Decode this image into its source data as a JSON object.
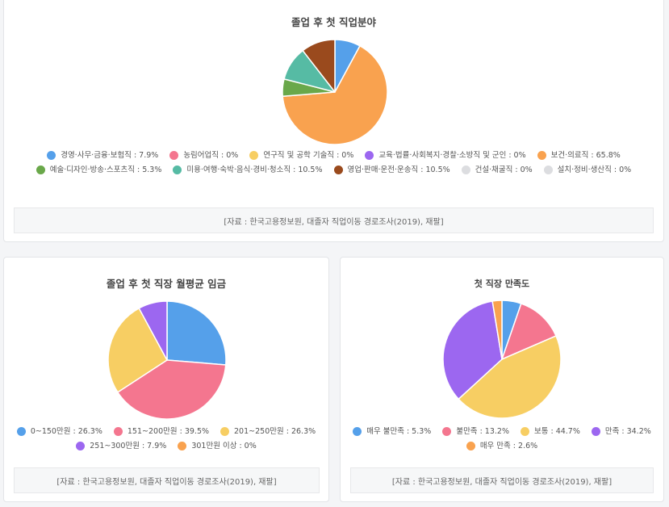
{
  "source_note": "[자료 : 한국고용정보원, 대졸자 직업이동 경로조사(2019), 재팔]",
  "chart_data": [
    {
      "type": "pie",
      "title": "졸업 후 첫 직업분야",
      "start_angle": 0,
      "slices": [
        {
          "label": "경영·사무·금융·보험직",
          "value": 7.9,
          "color": "#55a0ea",
          "legend_text": "경영·사무·금융·보험직 : 7.9%"
        },
        {
          "label": "농림어업직",
          "value": 0,
          "color": "#f4768f",
          "legend_text": "농림어업직 : 0%"
        },
        {
          "label": "연구직 및 공학 기술직",
          "value": 0,
          "color": "#f7ce63",
          "legend_text": "연구직 및 공학 기술직 : 0%"
        },
        {
          "label": "교육·법률·사회복지·경찰·소방직 및 군인",
          "value": 0,
          "color": "#9c67f0",
          "legend_text": "교육·법률·사회복지·경찰·소방직 및 군인 : 0%"
        },
        {
          "label": "보건·의료직",
          "value": 65.8,
          "color": "#f9a24f",
          "legend_text": "보건·의료직 : 65.8%"
        },
        {
          "label": "예술·디자인·방송·스포츠직",
          "value": 5.3,
          "color": "#6aa84a",
          "legend_text": "예술·디자인·방송·스포츠직 : 5.3%"
        },
        {
          "label": "미용·여행·숙박·음식·경비·청소직",
          "value": 10.5,
          "color": "#56bba4",
          "legend_text": "미용·여행·숙박·음식·경비·청소직 : 10.5%"
        },
        {
          "label": "영업·판매·운전·운송직",
          "value": 10.5,
          "color": "#9a4a1d",
          "legend_text": "영업·판매·운전·운송직 : 10.5%"
        },
        {
          "label": "건설·채굴직",
          "value": 0,
          "color": "#dcdde0",
          "legend_text": "건설·채굴직 : 0%"
        },
        {
          "label": "설치·정비·생산직",
          "value": 0,
          "color": "#dcdde0",
          "legend_text": "설치·정비·생산직 : 0%"
        }
      ],
      "legend_position": "bottom"
    },
    {
      "type": "pie",
      "title": "졸업 후 첫 직장 월평균 임금",
      "start_angle": 0,
      "slices": [
        {
          "label": "0~150만원",
          "value": 26.3,
          "color": "#55a0ea",
          "legend_text": "0~150만원 : 26.3%"
        },
        {
          "label": "151~200만원",
          "value": 39.5,
          "color": "#f4768f",
          "legend_text": "151~200만원 : 39.5%"
        },
        {
          "label": "201~250만원",
          "value": 26.3,
          "color": "#f7ce63",
          "legend_text": "201~250만원 : 26.3%"
        },
        {
          "label": "251~300만원",
          "value": 7.9,
          "color": "#9c67f0",
          "legend_text": "251~300만원 : 7.9%"
        },
        {
          "label": "301만원 이상",
          "value": 0,
          "color": "#f9a24f",
          "legend_text": "301만원 이상 : 0%"
        }
      ],
      "legend_position": "bottom"
    },
    {
      "type": "pie",
      "title": "첫 직장 만족도",
      "start_angle": 0,
      "slices": [
        {
          "label": "매우 불만족",
          "value": 5.3,
          "color": "#55a0ea",
          "legend_text": "매우 불만족 : 5.3%"
        },
        {
          "label": "불만족",
          "value": 13.2,
          "color": "#f4768f",
          "legend_text": "불만족 : 13.2%"
        },
        {
          "label": "보통",
          "value": 44.7,
          "color": "#f7ce63",
          "legend_text": "보통 : 44.7%"
        },
        {
          "label": "만족",
          "value": 34.2,
          "color": "#9c67f0",
          "legend_text": "만족 : 34.2%"
        },
        {
          "label": "매우 만족",
          "value": 2.6,
          "color": "#f9a24f",
          "legend_text": "매우 만족 : 2.6%"
        }
      ],
      "legend_position": "bottom"
    }
  ]
}
